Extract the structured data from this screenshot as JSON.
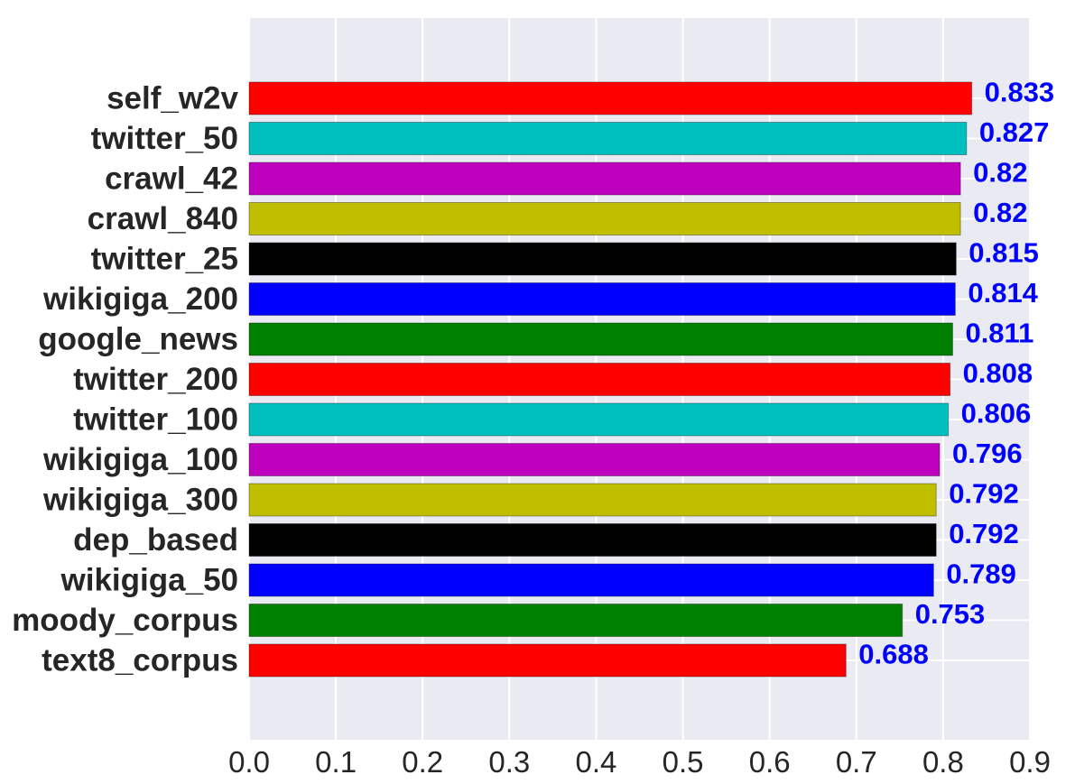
{
  "chart_data": {
    "type": "bar",
    "orientation": "horizontal",
    "title": "",
    "xlabel": "",
    "ylabel": "",
    "xlim": [
      0.0,
      0.9
    ],
    "grid": true,
    "legend": "none",
    "background_color": "#EAEAF2",
    "grid_color": "#FFFFFF",
    "value_label_color": "#0000FF",
    "x_ticks": [
      "0.0",
      "0.1",
      "0.2",
      "0.3",
      "0.4",
      "0.5",
      "0.6",
      "0.7",
      "0.8",
      "0.9"
    ],
    "categories": [
      "self_w2v",
      "twitter_50",
      "crawl_42",
      "crawl_840",
      "twitter_25",
      "wikigiga_200",
      "google_news",
      "twitter_200",
      "twitter_100",
      "wikigiga_100",
      "wikigiga_300",
      "dep_based",
      "wikigiga_50",
      "moody_corpus",
      "text8_corpus"
    ],
    "values": [
      0.833,
      0.827,
      0.82,
      0.82,
      0.815,
      0.814,
      0.811,
      0.808,
      0.806,
      0.796,
      0.792,
      0.792,
      0.789,
      0.753,
      0.688
    ],
    "value_labels": [
      "0.833",
      "0.827",
      "0.82",
      "0.82",
      "0.815",
      "0.814",
      "0.811",
      "0.808",
      "0.806",
      "0.796",
      "0.792",
      "0.792",
      "0.789",
      "0.753",
      "0.688"
    ],
    "colors": [
      "#FF0000",
      "#00BFBF",
      "#BF00BF",
      "#BFBF00",
      "#000000",
      "#0000FF",
      "#008000",
      "#FF0000",
      "#00BFBF",
      "#BF00BF",
      "#BFBF00",
      "#000000",
      "#0000FF",
      "#008000",
      "#FF0000"
    ]
  }
}
